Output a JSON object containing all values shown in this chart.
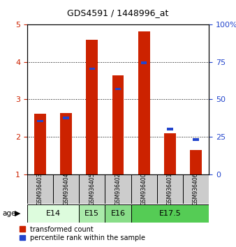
{
  "title": "GDS4591 / 1448996_at",
  "samples": [
    "GSM936403",
    "GSM936404",
    "GSM936405",
    "GSM936402",
    "GSM936400",
    "GSM936401",
    "GSM936406"
  ],
  "red_values": [
    2.62,
    2.64,
    4.6,
    3.65,
    4.82,
    2.1,
    1.65
  ],
  "blue_values": [
    2.42,
    2.5,
    3.82,
    3.28,
    3.98,
    2.2,
    1.92
  ],
  "ylim_left": [
    1,
    5
  ],
  "ylim_right": [
    0,
    100
  ],
  "yticks_left": [
    1,
    2,
    3,
    4,
    5
  ],
  "yticks_right": [
    0,
    25,
    50,
    75,
    100
  ],
  "age_groups": [
    {
      "label": "E14",
      "cols": [
        0,
        1
      ],
      "color": "#ddfcdd"
    },
    {
      "label": "E15",
      "cols": [
        2
      ],
      "color": "#aaeaaa"
    },
    {
      "label": "E16",
      "cols": [
        3
      ],
      "color": "#88dd88"
    },
    {
      "label": "E17.5",
      "cols": [
        4,
        5,
        6
      ],
      "color": "#55cc55"
    }
  ],
  "bar_color_red": "#cc2200",
  "bar_color_blue": "#2244cc",
  "sample_bg": "#cccccc",
  "background_color": "#ffffff"
}
